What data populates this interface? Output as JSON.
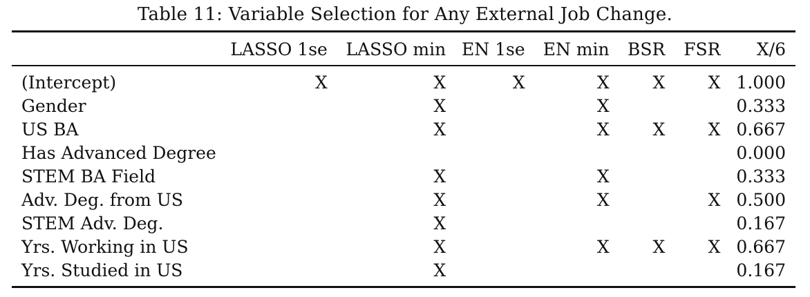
{
  "caption": "Table 11: Variable Selection for Any External Job Change.",
  "headers": [
    "",
    "LASSO 1se",
    "LASSO min",
    "EN 1se",
    "EN min",
    "BSR",
    "FSR",
    "X/6"
  ],
  "rows": [
    [
      "(Intercept)",
      "X",
      "X",
      "X",
      "X",
      "X",
      "X",
      "1.000"
    ],
    [
      "Gender",
      "",
      "X",
      "",
      "X",
      "",
      "",
      "0.333"
    ],
    [
      "US BA",
      "",
      "X",
      "",
      "X",
      "X",
      "X",
      "0.667"
    ],
    [
      "Has Advanced Degree",
      "",
      "",
      "",
      "",
      "",
      "",
      "0.000"
    ],
    [
      "STEM BA Field",
      "",
      "X",
      "",
      "X",
      "",
      "",
      "0.333"
    ],
    [
      "Adv. Deg. from US",
      "",
      "X",
      "",
      "X",
      "",
      "X",
      "0.500"
    ],
    [
      "STEM Adv. Deg.",
      "",
      "X",
      "",
      "",
      "",
      "",
      "0.167"
    ],
    [
      "Yrs. Working in US",
      "",
      "X",
      "",
      "X",
      "X",
      "X",
      "0.667"
    ],
    [
      "Yrs. Studied in US",
      "",
      "X",
      "",
      "",
      "",
      "",
      "0.167"
    ]
  ]
}
